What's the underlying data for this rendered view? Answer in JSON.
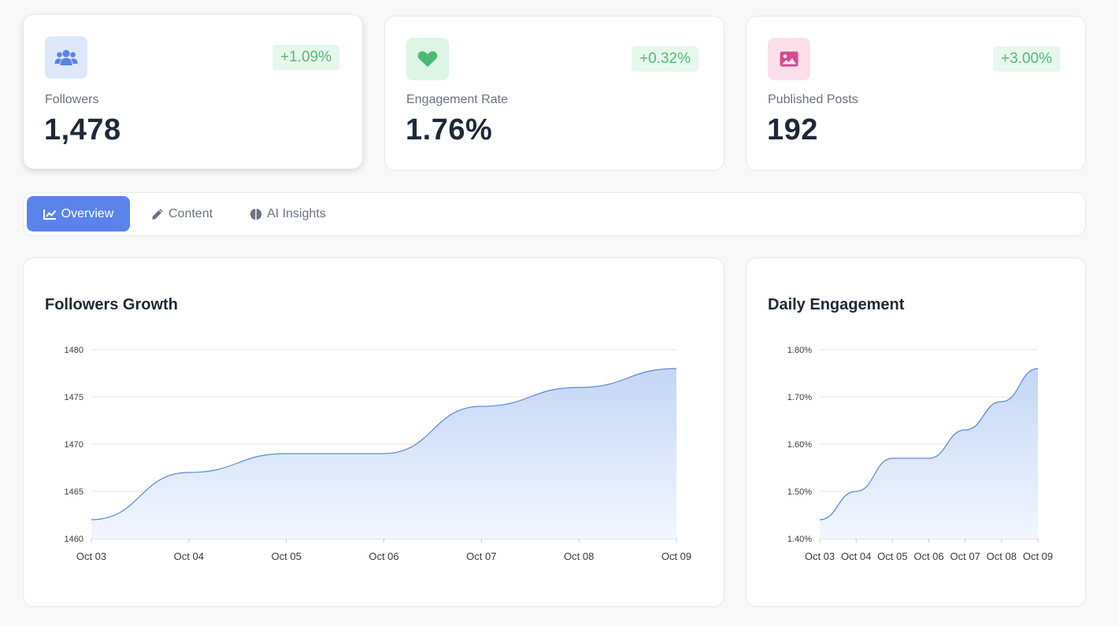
{
  "stats": [
    {
      "label": "Followers",
      "value": "1,478",
      "change": "+1.09%",
      "icon": "users-icon",
      "icon_bg": "#dfe8fb",
      "icon_color": "#5b84ea"
    },
    {
      "label": "Engagement Rate",
      "value": "1.76%",
      "change": "+0.32%",
      "icon": "heart-icon",
      "icon_bg": "#dcf5e4",
      "icon_color": "#4cba75"
    },
    {
      "label": "Published Posts",
      "value": "192",
      "change": "+3.00%",
      "icon": "image-icon",
      "icon_bg": "#fbe0ec",
      "icon_color": "#d64a8b"
    }
  ],
  "tabs": [
    {
      "label": "Overview",
      "icon": "chart-line-icon",
      "active": true
    },
    {
      "label": "Content",
      "icon": "pencil-icon",
      "active": false
    },
    {
      "label": "AI Insights",
      "icon": "brain-icon",
      "active": false
    }
  ],
  "colors": {
    "accent": "#5b84ea",
    "positive": "#58b87a",
    "line": "#5a8ad8",
    "area_top": "#c3d6f6",
    "area_bottom": "#f3f7fe"
  },
  "chart_data": [
    {
      "type": "area",
      "title": "Followers Growth",
      "x": [
        "Oct 03",
        "Oct 04",
        "Oct 05",
        "Oct 06",
        "Oct 07",
        "Oct 08",
        "Oct 09"
      ],
      "y": [
        1462,
        1467,
        1469,
        1469,
        1474,
        1476,
        1478
      ],
      "ylim": [
        1460,
        1480
      ],
      "yticks": [
        "1460",
        "1465",
        "1470",
        "1475",
        "1480"
      ],
      "grid": true
    },
    {
      "type": "area",
      "title": "Daily Engagement",
      "x": [
        "Oct 03",
        "Oct 04",
        "Oct 05",
        "Oct 06",
        "Oct 07",
        "Oct 08",
        "Oct 09"
      ],
      "y": [
        1.44,
        1.5,
        1.57,
        1.57,
        1.63,
        1.69,
        1.76
      ],
      "ylim": [
        1.4,
        1.8
      ],
      "yticks": [
        "1.40%",
        "1.50%",
        "1.60%",
        "1.70%",
        "1.80%"
      ],
      "grid": true
    }
  ]
}
